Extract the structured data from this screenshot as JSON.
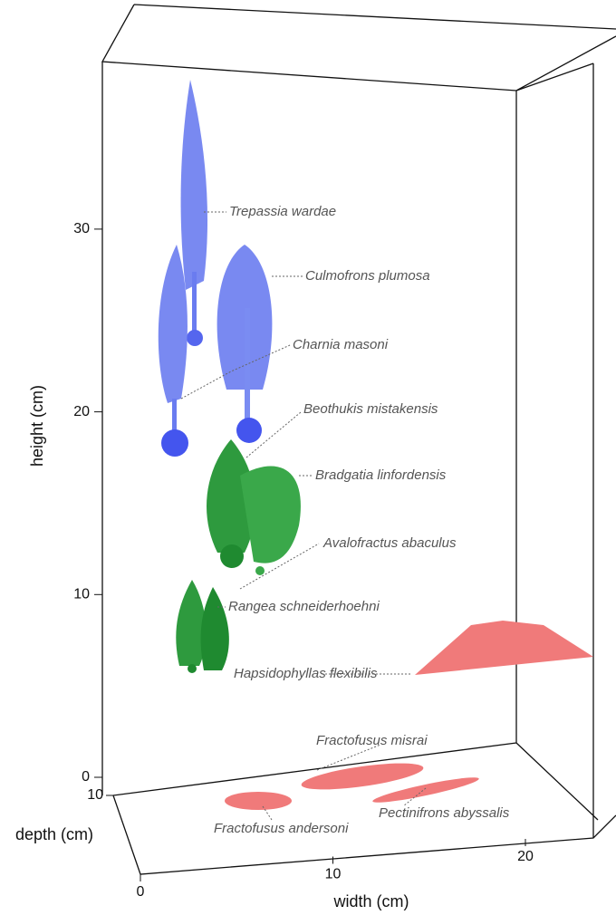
{
  "axes": {
    "height": {
      "label": "height (cm)",
      "ticks": [
        0,
        10,
        20,
        30
      ]
    },
    "depth": {
      "label": "depth (cm)",
      "ticks": [
        10
      ]
    },
    "width": {
      "label": "width (cm)",
      "ticks": [
        0,
        10,
        20
      ]
    }
  },
  "species": [
    "Trepassia wardae",
    "Culmofrons plumosa",
    "Charnia masoni",
    "Beothukis mistakensis",
    "Bradgatia linfordensis",
    "Avalofractus abaculus",
    "Rangea schneiderhoehni",
    "Hapsidophyllas flexibilis",
    "Fractofusus misrai",
    "Pectinifrons abyssalis",
    "Fractofusus andersoni"
  ]
}
